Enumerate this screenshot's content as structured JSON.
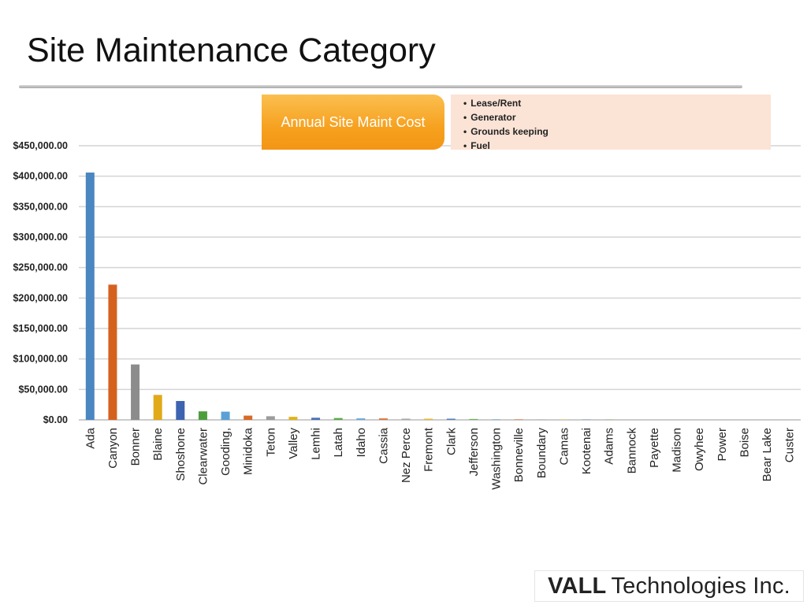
{
  "slide": {
    "title": "Site Maintenance Category"
  },
  "callout": {
    "label": "Annual Site Maint Cost",
    "bullets": [
      "Lease/Rent",
      "Generator",
      "Grounds keeping",
      "Fuel"
    ]
  },
  "logo": {
    "brand": "VALL",
    "rest": "Technologies Inc."
  },
  "chart_data": {
    "type": "bar",
    "title": "",
    "xlabel": "",
    "ylabel": "",
    "ylim": [
      0,
      450000
    ],
    "yticks": [
      0,
      50000,
      100000,
      150000,
      200000,
      250000,
      300000,
      350000,
      400000,
      450000
    ],
    "ytick_labels": [
      "$0.00",
      "$50,000.00",
      "$100,000.00",
      "$150,000.00",
      "$200,000.00",
      "$250,000.00",
      "$300,000.00",
      "$350,000.00",
      "$400,000.00",
      "$450,000.00"
    ],
    "grid": true,
    "categories": [
      "Ada",
      "Canyon",
      "Bonner",
      "Blaine",
      "Shoshone",
      "Clearwater",
      "Gooding,",
      "Minidoka",
      "Teton",
      "Valley",
      "Lemhi",
      "Latah",
      "Idaho",
      "Cassia",
      "Nez Perce",
      "Fremont",
      "Clark",
      "Jefferson",
      "Washington",
      "Bonneville",
      "Boundary",
      "Camas",
      "Kootenai",
      "Adams",
      "Bannock",
      "Payette",
      "Madison",
      "Owyhee",
      "Power",
      "Boise",
      "Bear Lake",
      "Custer"
    ],
    "values": [
      406000,
      222000,
      91000,
      41000,
      31000,
      14000,
      13500,
      7000,
      6000,
      5000,
      3500,
      3000,
      2500,
      2500,
      2000,
      2000,
      2000,
      1500,
      1000,
      1000,
      800,
      600,
      500,
      500,
      0,
      0,
      0,
      0,
      0,
      0,
      0,
      0
    ],
    "colors": [
      "#4a86c0",
      "#d4621e",
      "#8c8c8c",
      "#e0aa18",
      "#3c64b0",
      "#4c9e3c",
      "#5aa0d6",
      "#d86a28",
      "#9c9c9c",
      "#e2b21c",
      "#4a70b6",
      "#58ac48",
      "#6aa8da",
      "#dc7a40",
      "#a8a8a8",
      "#e4bc3a",
      "#5a80c0",
      "#6cb45a",
      "#7ab2de",
      "#e08a58",
      "#b4b4b4",
      "#e8c450",
      "#6a8cc6",
      "#80bc70",
      "#8cbce2",
      "#e49c70",
      "#c0c0c0",
      "#ecce68",
      "#7c9acc",
      "#90c484",
      "#9cc6e6",
      "#e8ac88"
    ]
  }
}
